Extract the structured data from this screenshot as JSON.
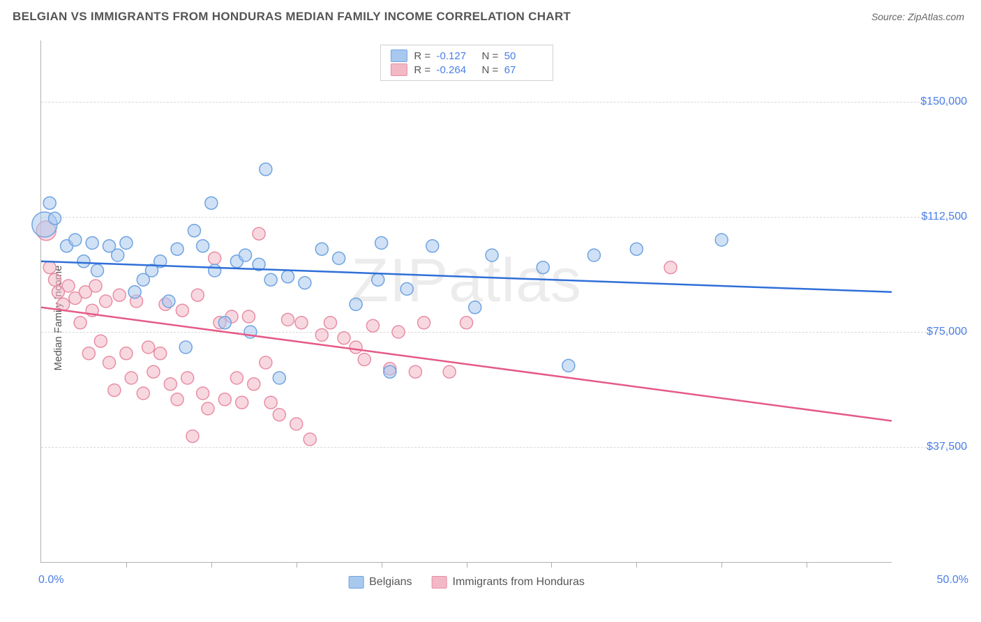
{
  "header": {
    "title": "BELGIAN VS IMMIGRANTS FROM HONDURAS MEDIAN FAMILY INCOME CORRELATION CHART",
    "source_label": "Source:",
    "source_value": "ZipAtlas.com"
  },
  "chart": {
    "type": "scatter",
    "ylabel": "Median Family Income",
    "watermark": "ZIPatlas",
    "background_color": "#ffffff",
    "grid_color": "#d8d8d8",
    "axis_color": "#b0b0b0",
    "text_color": "#555555",
    "value_color": "#4a7ee8",
    "xlim": [
      0,
      50
    ],
    "ylim": [
      0,
      170000
    ],
    "x_axis_start_label": "0.0%",
    "x_axis_end_label": "50.0%",
    "xtick_positions": [
      5,
      10,
      15,
      20,
      25,
      30,
      35,
      40,
      45
    ],
    "yticks": [
      {
        "value": 37500,
        "label": "$37,500"
      },
      {
        "value": 75000,
        "label": "$75,000"
      },
      {
        "value": 112500,
        "label": "$112,500"
      },
      {
        "value": 150000,
        "label": "$150,000"
      }
    ],
    "series": [
      {
        "id": "belgians",
        "label": "Belgians",
        "fill_color": "#a9c8ee",
        "stroke_color": "#6fa3e0",
        "line_color": "#2f6fd8",
        "fill_opacity": 0.55,
        "marker_radius": 9,
        "R": "-0.127",
        "N": "50",
        "trend": {
          "y_at_xmin": 98000,
          "y_at_xmax": 88000
        },
        "points": [
          {
            "x": 0.5,
            "y": 117000,
            "r": 9
          },
          {
            "x": 0.2,
            "y": 110000,
            "r": 18
          },
          {
            "x": 0.8,
            "y": 112000,
            "r": 9
          },
          {
            "x": 1.5,
            "y": 103000,
            "r": 9
          },
          {
            "x": 2.0,
            "y": 105000,
            "r": 9
          },
          {
            "x": 2.5,
            "y": 98000,
            "r": 9
          },
          {
            "x": 3.0,
            "y": 104000,
            "r": 9
          },
          {
            "x": 3.3,
            "y": 95000,
            "r": 9
          },
          {
            "x": 4.0,
            "y": 103000,
            "r": 9
          },
          {
            "x": 4.5,
            "y": 100000,
            "r": 9
          },
          {
            "x": 5.0,
            "y": 104000,
            "r": 9
          },
          {
            "x": 5.5,
            "y": 88000,
            "r": 9
          },
          {
            "x": 6.0,
            "y": 92000,
            "r": 9
          },
          {
            "x": 6.5,
            "y": 95000,
            "r": 9
          },
          {
            "x": 7.0,
            "y": 98000,
            "r": 9
          },
          {
            "x": 7.5,
            "y": 85000,
            "r": 9
          },
          {
            "x": 8.0,
            "y": 102000,
            "r": 9
          },
          {
            "x": 8.5,
            "y": 70000,
            "r": 9
          },
          {
            "x": 9.0,
            "y": 108000,
            "r": 9
          },
          {
            "x": 9.5,
            "y": 103000,
            "r": 9
          },
          {
            "x": 10.0,
            "y": 117000,
            "r": 9
          },
          {
            "x": 10.2,
            "y": 95000,
            "r": 9
          },
          {
            "x": 10.8,
            "y": 78000,
            "r": 9
          },
          {
            "x": 11.5,
            "y": 98000,
            "r": 9
          },
          {
            "x": 12.0,
            "y": 100000,
            "r": 9
          },
          {
            "x": 12.3,
            "y": 75000,
            "r": 9
          },
          {
            "x": 12.8,
            "y": 97000,
            "r": 9
          },
          {
            "x": 13.2,
            "y": 128000,
            "r": 9
          },
          {
            "x": 13.5,
            "y": 92000,
            "r": 9
          },
          {
            "x": 14.0,
            "y": 60000,
            "r": 9
          },
          {
            "x": 14.5,
            "y": 93000,
            "r": 9
          },
          {
            "x": 15.5,
            "y": 91000,
            "r": 9
          },
          {
            "x": 16.5,
            "y": 102000,
            "r": 9
          },
          {
            "x": 17.5,
            "y": 99000,
            "r": 9
          },
          {
            "x": 18.5,
            "y": 84000,
            "r": 9
          },
          {
            "x": 19.8,
            "y": 92000,
            "r": 9
          },
          {
            "x": 20.0,
            "y": 104000,
            "r": 9
          },
          {
            "x": 20.5,
            "y": 62000,
            "r": 9
          },
          {
            "x": 21.5,
            "y": 89000,
            "r": 9
          },
          {
            "x": 23.0,
            "y": 103000,
            "r": 9
          },
          {
            "x": 25.5,
            "y": 83000,
            "r": 9
          },
          {
            "x": 26.5,
            "y": 100000,
            "r": 9
          },
          {
            "x": 29.5,
            "y": 96000,
            "r": 9
          },
          {
            "x": 31.0,
            "y": 64000,
            "r": 9
          },
          {
            "x": 32.5,
            "y": 100000,
            "r": 9
          },
          {
            "x": 35.0,
            "y": 102000,
            "r": 9
          },
          {
            "x": 40.0,
            "y": 105000,
            "r": 9
          }
        ]
      },
      {
        "id": "honduras",
        "label": "Immigrants from Honduras",
        "fill_color": "#f3b8c6",
        "stroke_color": "#e88da4",
        "line_color": "#e55a87",
        "fill_opacity": 0.55,
        "marker_radius": 9,
        "R": "-0.264",
        "N": "67",
        "trend": {
          "y_at_xmin": 83000,
          "y_at_xmax": 46000
        },
        "points": [
          {
            "x": 0.3,
            "y": 108000,
            "r": 14
          },
          {
            "x": 0.5,
            "y": 96000,
            "r": 9
          },
          {
            "x": 0.8,
            "y": 92000,
            "r": 9
          },
          {
            "x": 1.0,
            "y": 88000,
            "r": 9
          },
          {
            "x": 1.3,
            "y": 84000,
            "r": 9
          },
          {
            "x": 1.6,
            "y": 90000,
            "r": 9
          },
          {
            "x": 2.0,
            "y": 86000,
            "r": 9
          },
          {
            "x": 2.3,
            "y": 78000,
            "r": 9
          },
          {
            "x": 2.6,
            "y": 88000,
            "r": 9
          },
          {
            "x": 2.8,
            "y": 68000,
            "r": 9
          },
          {
            "x": 3.0,
            "y": 82000,
            "r": 9
          },
          {
            "x": 3.2,
            "y": 90000,
            "r": 9
          },
          {
            "x": 3.5,
            "y": 72000,
            "r": 9
          },
          {
            "x": 3.8,
            "y": 85000,
            "r": 9
          },
          {
            "x": 4.0,
            "y": 65000,
            "r": 9
          },
          {
            "x": 4.3,
            "y": 56000,
            "r": 9
          },
          {
            "x": 4.6,
            "y": 87000,
            "r": 9
          },
          {
            "x": 5.0,
            "y": 68000,
            "r": 9
          },
          {
            "x": 5.3,
            "y": 60000,
            "r": 9
          },
          {
            "x": 5.6,
            "y": 85000,
            "r": 9
          },
          {
            "x": 6.0,
            "y": 55000,
            "r": 9
          },
          {
            "x": 6.3,
            "y": 70000,
            "r": 9
          },
          {
            "x": 6.6,
            "y": 62000,
            "r": 9
          },
          {
            "x": 7.0,
            "y": 68000,
            "r": 9
          },
          {
            "x": 7.3,
            "y": 84000,
            "r": 9
          },
          {
            "x": 7.6,
            "y": 58000,
            "r": 9
          },
          {
            "x": 8.0,
            "y": 53000,
            "r": 9
          },
          {
            "x": 8.3,
            "y": 82000,
            "r": 9
          },
          {
            "x": 8.6,
            "y": 60000,
            "r": 9
          },
          {
            "x": 8.9,
            "y": 41000,
            "r": 9
          },
          {
            "x": 9.2,
            "y": 87000,
            "r": 9
          },
          {
            "x": 9.5,
            "y": 55000,
            "r": 9
          },
          {
            "x": 9.8,
            "y": 50000,
            "r": 9
          },
          {
            "x": 10.2,
            "y": 99000,
            "r": 9
          },
          {
            "x": 10.5,
            "y": 78000,
            "r": 9
          },
          {
            "x": 10.8,
            "y": 53000,
            "r": 9
          },
          {
            "x": 11.2,
            "y": 80000,
            "r": 9
          },
          {
            "x": 11.5,
            "y": 60000,
            "r": 9
          },
          {
            "x": 11.8,
            "y": 52000,
            "r": 9
          },
          {
            "x": 12.2,
            "y": 80000,
            "r": 9
          },
          {
            "x": 12.5,
            "y": 58000,
            "r": 9
          },
          {
            "x": 12.8,
            "y": 107000,
            "r": 9
          },
          {
            "x": 13.2,
            "y": 65000,
            "r": 9
          },
          {
            "x": 13.5,
            "y": 52000,
            "r": 9
          },
          {
            "x": 14.0,
            "y": 48000,
            "r": 9
          },
          {
            "x": 14.5,
            "y": 79000,
            "r": 9
          },
          {
            "x": 15.0,
            "y": 45000,
            "r": 9
          },
          {
            "x": 15.3,
            "y": 78000,
            "r": 9
          },
          {
            "x": 15.8,
            "y": 40000,
            "r": 9
          },
          {
            "x": 16.5,
            "y": 74000,
            "r": 9
          },
          {
            "x": 17.0,
            "y": 78000,
            "r": 9
          },
          {
            "x": 17.8,
            "y": 73000,
            "r": 9
          },
          {
            "x": 18.5,
            "y": 70000,
            "r": 9
          },
          {
            "x": 19.0,
            "y": 66000,
            "r": 9
          },
          {
            "x": 19.5,
            "y": 77000,
            "r": 9
          },
          {
            "x": 20.5,
            "y": 63000,
            "r": 9
          },
          {
            "x": 21.0,
            "y": 75000,
            "r": 9
          },
          {
            "x": 22.0,
            "y": 62000,
            "r": 9
          },
          {
            "x": 22.5,
            "y": 78000,
            "r": 9
          },
          {
            "x": 24.0,
            "y": 62000,
            "r": 9
          },
          {
            "x": 25.0,
            "y": 78000,
            "r": 9
          },
          {
            "x": 37.0,
            "y": 96000,
            "r": 9
          }
        ]
      }
    ],
    "legend_bottom": [
      {
        "series": 0
      },
      {
        "series": 1
      }
    ]
  }
}
